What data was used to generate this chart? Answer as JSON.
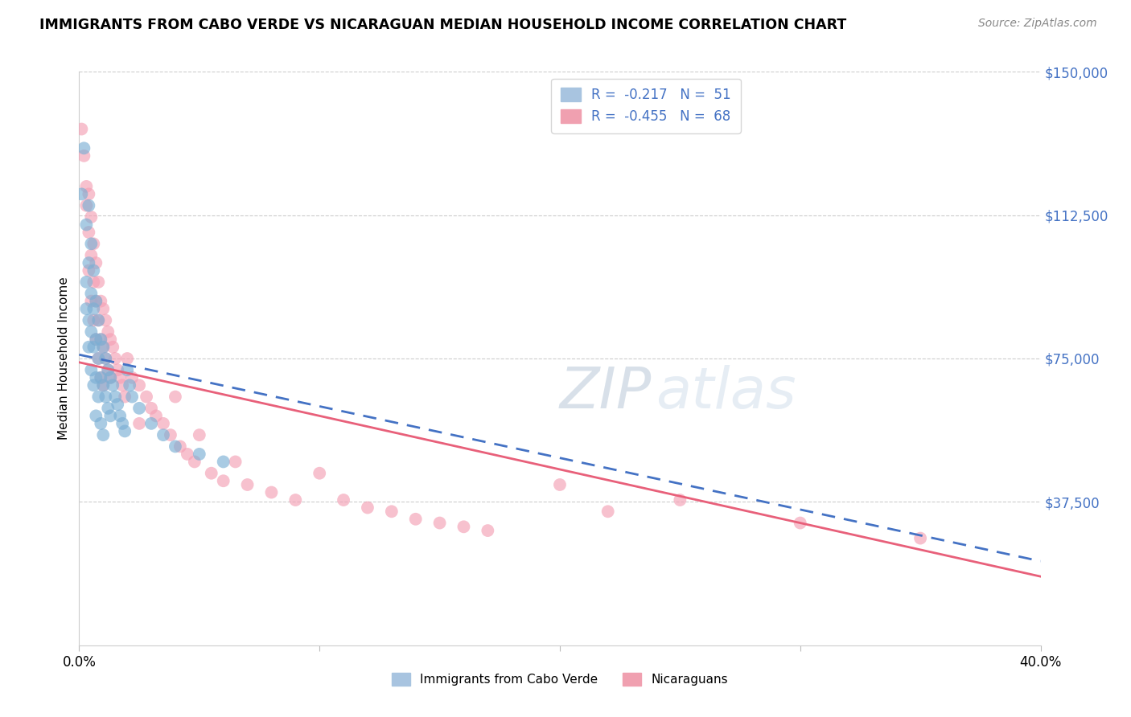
{
  "title": "IMMIGRANTS FROM CABO VERDE VS NICARAGUAN MEDIAN HOUSEHOLD INCOME CORRELATION CHART",
  "source": "Source: ZipAtlas.com",
  "ylabel": "Median Household Income",
  "xmin": 0.0,
  "xmax": 0.4,
  "ymin": 0,
  "ymax": 150000,
  "yticks": [
    0,
    37500,
    75000,
    112500,
    150000
  ],
  "ytick_labels": [
    "",
    "$37,500",
    "$75,000",
    "$112,500",
    "$150,000"
  ],
  "xticks": [
    0.0,
    0.1,
    0.2,
    0.3,
    0.4
  ],
  "xtick_labels": [
    "0.0%",
    "",
    "",
    "",
    "40.0%"
  ],
  "cabo_verde_color": "#7bafd4",
  "nicaraguan_color": "#f4a0b5",
  "cabo_verde_line_color": "#4472c4",
  "nicaraguan_line_color": "#e8607a",
  "cabo_verde_points": [
    [
      0.001,
      118000
    ],
    [
      0.002,
      130000
    ],
    [
      0.003,
      110000
    ],
    [
      0.003,
      95000
    ],
    [
      0.003,
      88000
    ],
    [
      0.004,
      115000
    ],
    [
      0.004,
      100000
    ],
    [
      0.004,
      85000
    ],
    [
      0.004,
      78000
    ],
    [
      0.005,
      105000
    ],
    [
      0.005,
      92000
    ],
    [
      0.005,
      82000
    ],
    [
      0.005,
      72000
    ],
    [
      0.006,
      98000
    ],
    [
      0.006,
      88000
    ],
    [
      0.006,
      78000
    ],
    [
      0.006,
      68000
    ],
    [
      0.007,
      90000
    ],
    [
      0.007,
      80000
    ],
    [
      0.007,
      70000
    ],
    [
      0.007,
      60000
    ],
    [
      0.008,
      85000
    ],
    [
      0.008,
      75000
    ],
    [
      0.008,
      65000
    ],
    [
      0.009,
      80000
    ],
    [
      0.009,
      70000
    ],
    [
      0.009,
      58000
    ],
    [
      0.01,
      78000
    ],
    [
      0.01,
      68000
    ],
    [
      0.01,
      55000
    ],
    [
      0.011,
      75000
    ],
    [
      0.011,
      65000
    ],
    [
      0.012,
      72000
    ],
    [
      0.012,
      62000
    ],
    [
      0.013,
      70000
    ],
    [
      0.013,
      60000
    ],
    [
      0.014,
      68000
    ],
    [
      0.015,
      65000
    ],
    [
      0.016,
      63000
    ],
    [
      0.017,
      60000
    ],
    [
      0.018,
      58000
    ],
    [
      0.019,
      56000
    ],
    [
      0.02,
      72000
    ],
    [
      0.021,
      68000
    ],
    [
      0.022,
      65000
    ],
    [
      0.025,
      62000
    ],
    [
      0.03,
      58000
    ],
    [
      0.035,
      55000
    ],
    [
      0.04,
      52000
    ],
    [
      0.05,
      50000
    ],
    [
      0.06,
      48000
    ]
  ],
  "nicaraguan_points": [
    [
      0.001,
      135000
    ],
    [
      0.002,
      128000
    ],
    [
      0.003,
      120000
    ],
    [
      0.003,
      115000
    ],
    [
      0.004,
      118000
    ],
    [
      0.004,
      108000
    ],
    [
      0.004,
      98000
    ],
    [
      0.005,
      112000
    ],
    [
      0.005,
      102000
    ],
    [
      0.005,
      90000
    ],
    [
      0.006,
      105000
    ],
    [
      0.006,
      95000
    ],
    [
      0.006,
      85000
    ],
    [
      0.007,
      100000
    ],
    [
      0.007,
      90000
    ],
    [
      0.007,
      80000
    ],
    [
      0.008,
      95000
    ],
    [
      0.008,
      85000
    ],
    [
      0.008,
      75000
    ],
    [
      0.009,
      90000
    ],
    [
      0.009,
      80000
    ],
    [
      0.009,
      70000
    ],
    [
      0.01,
      88000
    ],
    [
      0.01,
      78000
    ],
    [
      0.01,
      68000
    ],
    [
      0.011,
      85000
    ],
    [
      0.011,
      75000
    ],
    [
      0.012,
      82000
    ],
    [
      0.012,
      72000
    ],
    [
      0.013,
      80000
    ],
    [
      0.013,
      70000
    ],
    [
      0.014,
      78000
    ],
    [
      0.015,
      75000
    ],
    [
      0.016,
      72000
    ],
    [
      0.017,
      70000
    ],
    [
      0.018,
      68000
    ],
    [
      0.019,
      65000
    ],
    [
      0.02,
      75000
    ],
    [
      0.022,
      70000
    ],
    [
      0.025,
      68000
    ],
    [
      0.025,
      58000
    ],
    [
      0.028,
      65000
    ],
    [
      0.03,
      62000
    ],
    [
      0.032,
      60000
    ],
    [
      0.035,
      58000
    ],
    [
      0.038,
      55000
    ],
    [
      0.04,
      65000
    ],
    [
      0.042,
      52000
    ],
    [
      0.045,
      50000
    ],
    [
      0.048,
      48000
    ],
    [
      0.05,
      55000
    ],
    [
      0.055,
      45000
    ],
    [
      0.06,
      43000
    ],
    [
      0.065,
      48000
    ],
    [
      0.07,
      42000
    ],
    [
      0.08,
      40000
    ],
    [
      0.09,
      38000
    ],
    [
      0.1,
      45000
    ],
    [
      0.11,
      38000
    ],
    [
      0.12,
      36000
    ],
    [
      0.13,
      35000
    ],
    [
      0.14,
      33000
    ],
    [
      0.15,
      32000
    ],
    [
      0.16,
      31000
    ],
    [
      0.17,
      30000
    ],
    [
      0.2,
      42000
    ],
    [
      0.22,
      35000
    ],
    [
      0.25,
      38000
    ],
    [
      0.3,
      32000
    ],
    [
      0.35,
      28000
    ]
  ],
  "cabo_line_x0": 0.0,
  "cabo_line_y0": 76000,
  "cabo_line_x1": 0.4,
  "cabo_line_y1": 22000,
  "nica_line_x0": 0.0,
  "nica_line_y0": 74000,
  "nica_line_x1": 0.4,
  "nica_line_y1": 18000
}
